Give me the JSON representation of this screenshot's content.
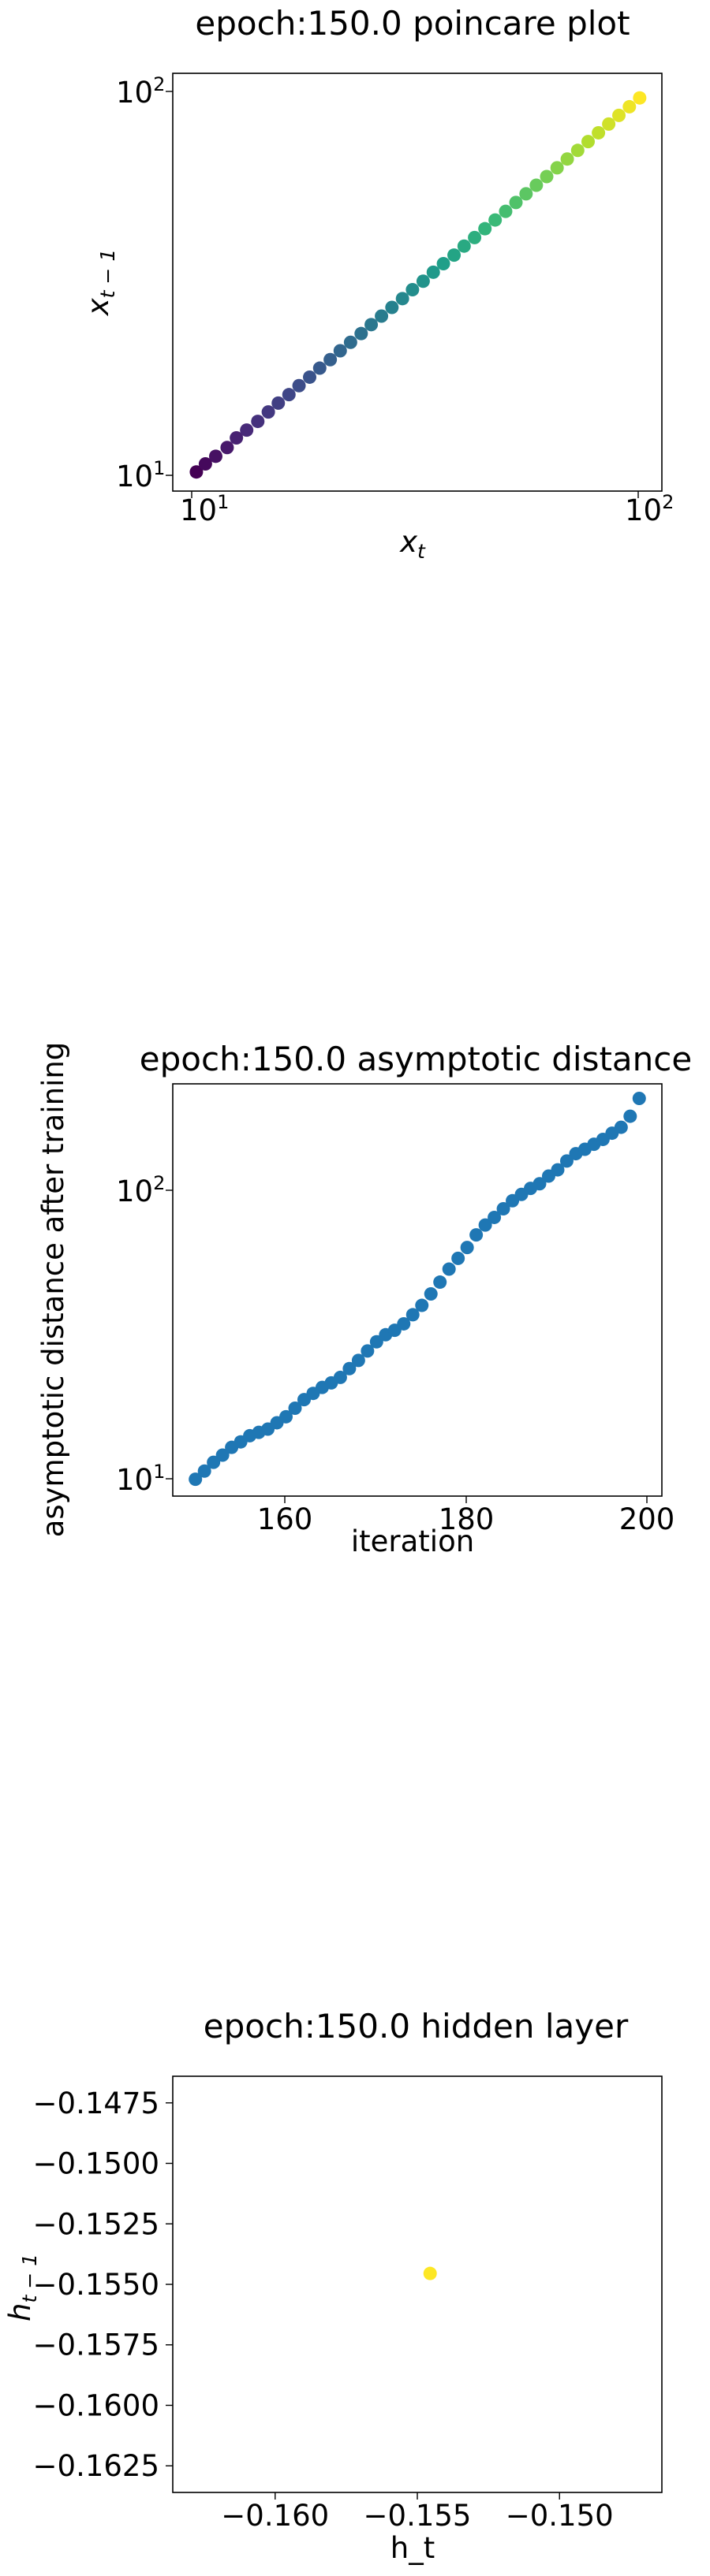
{
  "chart_data": [
    {
      "type": "scatter",
      "title": "epoch:150.0 poincare plot",
      "xlabel": "x_t",
      "ylabel": "x_{t-1}",
      "xscale": "log",
      "yscale": "log",
      "xlim": [
        9.3,
        115
      ],
      "ylim": [
        8.9,
        113
      ],
      "colormap": "viridis",
      "tick_labels": {
        "x_low": "10",
        "x_low_exp": "1",
        "x_high": "10",
        "x_high_exp": "2",
        "y_low": "10",
        "y_low_exp": "1",
        "y_high": "10",
        "y_high_exp": "2"
      },
      "x": [
        10.5,
        11.0,
        11.6,
        12.3,
        12.9,
        13.6,
        14.4,
        15.2,
        16.0,
        16.9,
        17.8,
        18.8,
        19.8,
        20.9,
        22.0,
        23.2,
        24.5,
        25.8,
        27.2,
        28.7,
        30.3,
        31.9,
        33.7,
        35.5,
        37.4,
        39.5,
        41.6,
        43.9,
        46.3,
        48.8,
        51.5,
        54.3,
        57.2,
        60.3,
        63.6,
        67.1,
        70.7,
        74.6,
        78.7,
        83.0,
        87.5,
        92.2,
        97.3,
        102.6
      ],
      "y": [
        10.0,
        10.5,
        11.0,
        11.6,
        12.3,
        12.9,
        13.6,
        14.4,
        15.2,
        16.0,
        16.9,
        17.8,
        18.8,
        19.8,
        20.9,
        22.0,
        23.2,
        24.5,
        25.8,
        27.2,
        28.7,
        30.3,
        31.9,
        33.7,
        35.5,
        37.4,
        39.5,
        41.6,
        43.9,
        46.3,
        48.8,
        51.5,
        54.3,
        57.2,
        60.3,
        63.6,
        67.1,
        70.7,
        74.6,
        78.7,
        83.0,
        87.5,
        92.2,
        97.3
      ]
    },
    {
      "type": "scatter",
      "title": "epoch:150.0 asymptotic distance",
      "xlabel": "iteration",
      "ylabel": "asymptotic distance after training",
      "xscale": "linear",
      "yscale": "log",
      "xlim": [
        147.5,
        201.5
      ],
      "ylim": [
        9.0,
        245
      ],
      "xticks": [
        160,
        180,
        200
      ],
      "tick_labels": {
        "y_low": "10",
        "y_low_exp": "1",
        "y_high": "10",
        "y_high_exp": "2"
      },
      "color": "#1f77b4",
      "x": [
        150,
        151,
        152,
        153,
        154,
        155,
        156,
        157,
        158,
        159,
        160,
        161,
        162,
        163,
        164,
        165,
        166,
        167,
        168,
        169,
        170,
        171,
        172,
        173,
        174,
        175,
        176,
        177,
        178,
        179,
        180,
        181,
        182,
        183,
        184,
        185,
        186,
        187,
        188,
        189,
        190,
        191,
        192,
        193,
        194,
        195,
        196,
        197,
        198,
        199
      ],
      "y": [
        10.3,
        11.0,
        11.8,
        12.5,
        13.3,
        13.9,
        14.6,
        15.0,
        15.4,
        16.2,
        17.0,
        18.2,
        19.5,
        20.5,
        21.5,
        22.3,
        23.3,
        25.0,
        26.7,
        28.8,
        31.0,
        32.8,
        34.0,
        35.8,
        38.5,
        41.5,
        45.5,
        50.0,
        55.5,
        60.5,
        66.0,
        73.0,
        79.0,
        84.0,
        90.0,
        96.0,
        101.0,
        106.0,
        110.0,
        117.0,
        123.0,
        132.0,
        140.0,
        145.0,
        151.0,
        157.0,
        165.0,
        173.0,
        189.0,
        218.0
      ]
    },
    {
      "type": "scatter",
      "title": "epoch:150.0 hidden layer",
      "xlabel": "h_t",
      "ylabel": "h_{t-1}",
      "xlim": [
        -0.1636,
        -0.1464
      ],
      "ylim": [
        -0.1636,
        -0.1464
      ],
      "xticks": [
        -0.16,
        -0.155,
        -0.15
      ],
      "xtick_labels": [
        "−0.160",
        "−0.155",
        "−0.150"
      ],
      "yticks": [
        -0.1475,
        -0.15,
        -0.1525,
        -0.155,
        -0.1575,
        -0.16,
        -0.1625
      ],
      "ytick_labels": [
        "−0.1475",
        "−0.1500",
        "−0.1525",
        "−0.1550",
        "−0.1575",
        "−0.1600",
        "−0.1625"
      ],
      "color": "#fde725",
      "x": [
        -0.15455
      ],
      "y": [
        -0.15455
      ]
    }
  ]
}
